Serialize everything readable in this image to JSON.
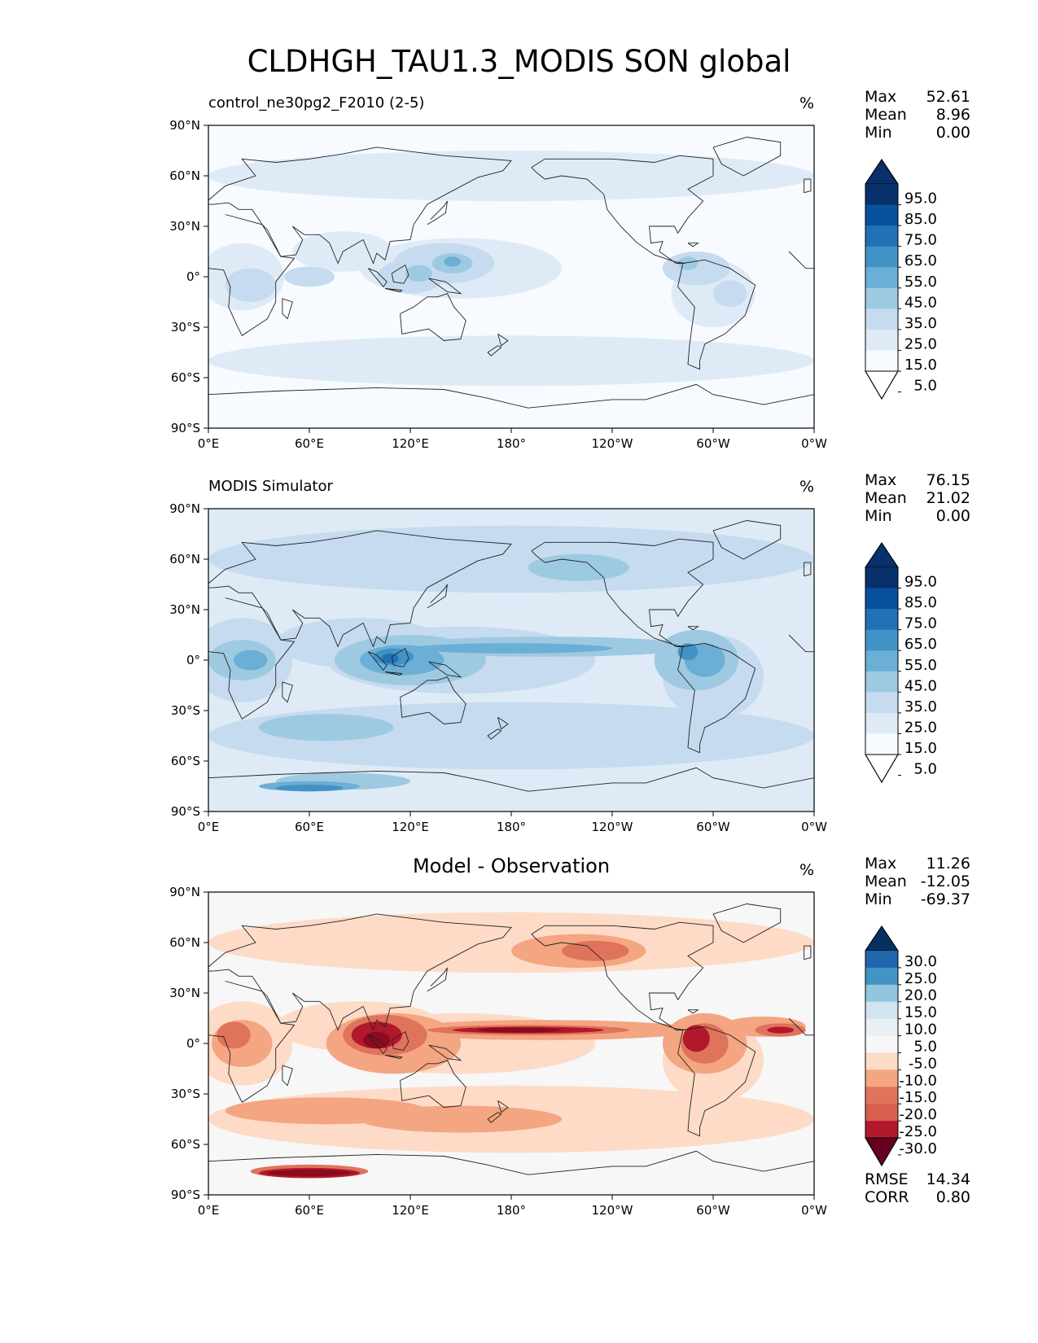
{
  "title": "CLDHGH_TAU1.3_MODIS SON global",
  "axes": {
    "lat_ticks": [
      "90°N",
      "60°N",
      "30°N",
      "0°",
      "30°S",
      "60°S",
      "90°S"
    ],
    "lon_ticks": [
      "0°E",
      "60°E",
      "120°E",
      "180°",
      "120°W",
      "60°W",
      "0°W"
    ]
  },
  "panels": [
    {
      "title_left": "control_ne30pg2_F2010 (2-5)",
      "title_center": "",
      "units": "%",
      "stats": [
        {
          "label": "Max",
          "value": "52.61"
        },
        {
          "label": "Mean",
          "value": "8.96"
        },
        {
          "label": "Min",
          "value": "0.00"
        }
      ],
      "colorbar": {
        "labels": [
          "95.0",
          "85.0",
          "75.0",
          "65.0",
          "55.0",
          "45.0",
          "35.0",
          "25.0",
          "15.0",
          "5.0"
        ],
        "colors": [
          "#08306b",
          "#08519c",
          "#2171b5",
          "#4292c6",
          "#6baed6",
          "#9ecae1",
          "#c6dbef",
          "#deebf7",
          "#f7fbff"
        ],
        "over_color": "#08306b",
        "under_color": "#ffffff"
      },
      "map": {
        "background": "#f7fbff",
        "level_colors": [
          "#deebf7",
          "#c6dbef",
          "#9ecae1",
          "#6baed6"
        ]
      }
    },
    {
      "title_left": "MODIS Simulator",
      "title_center": "",
      "units": "%",
      "stats": [
        {
          "label": "Max",
          "value": "76.15"
        },
        {
          "label": "Mean",
          "value": "21.02"
        },
        {
          "label": "Min",
          "value": "0.00"
        }
      ],
      "colorbar": {
        "labels": [
          "95.0",
          "85.0",
          "75.0",
          "65.0",
          "55.0",
          "45.0",
          "35.0",
          "25.0",
          "15.0",
          "5.0"
        ],
        "colors": [
          "#08306b",
          "#08519c",
          "#2171b5",
          "#4292c6",
          "#6baed6",
          "#9ecae1",
          "#c6dbef",
          "#deebf7",
          "#f7fbff"
        ],
        "over_color": "#08306b",
        "under_color": "#ffffff"
      },
      "map": {
        "background": "#deebf7",
        "level_colors": [
          "#c6dbef",
          "#9ecae1",
          "#6baed6",
          "#4292c6",
          "#2171b5"
        ]
      }
    },
    {
      "title_left": "",
      "title_center": "Model - Observation",
      "units": "%",
      "stats": [
        {
          "label": "Max",
          "value": "11.26"
        },
        {
          "label": "Mean",
          "value": "-12.05"
        },
        {
          "label": "Min",
          "value": "-69.37"
        }
      ],
      "colorbar": {
        "labels": [
          "30.0",
          "25.0",
          "20.0",
          "15.0",
          "10.0",
          "5.0",
          "-5.0",
          "-10.0",
          "-15.0",
          "-20.0",
          "-25.0",
          "-30.0"
        ],
        "colors": [
          "#2166ac",
          "#4393c3",
          "#92c5de",
          "#d1e5f0",
          "#e8f0f5",
          "#f7f7f7",
          "#fddbc7",
          "#f4a582",
          "#e0735c",
          "#d6604d",
          "#b2182b"
        ],
        "over_color": "#053061",
        "under_color": "#67001f"
      },
      "map": {
        "background": "#f7f7f7",
        "level_colors": [
          "#fddbc7",
          "#f4a582",
          "#e0735c",
          "#b2182b",
          "#8b0a1e"
        ]
      },
      "metrics": [
        {
          "label": "RMSE",
          "value": "14.34"
        },
        {
          "label": "CORR",
          "value": "0.80"
        }
      ]
    }
  ]
}
